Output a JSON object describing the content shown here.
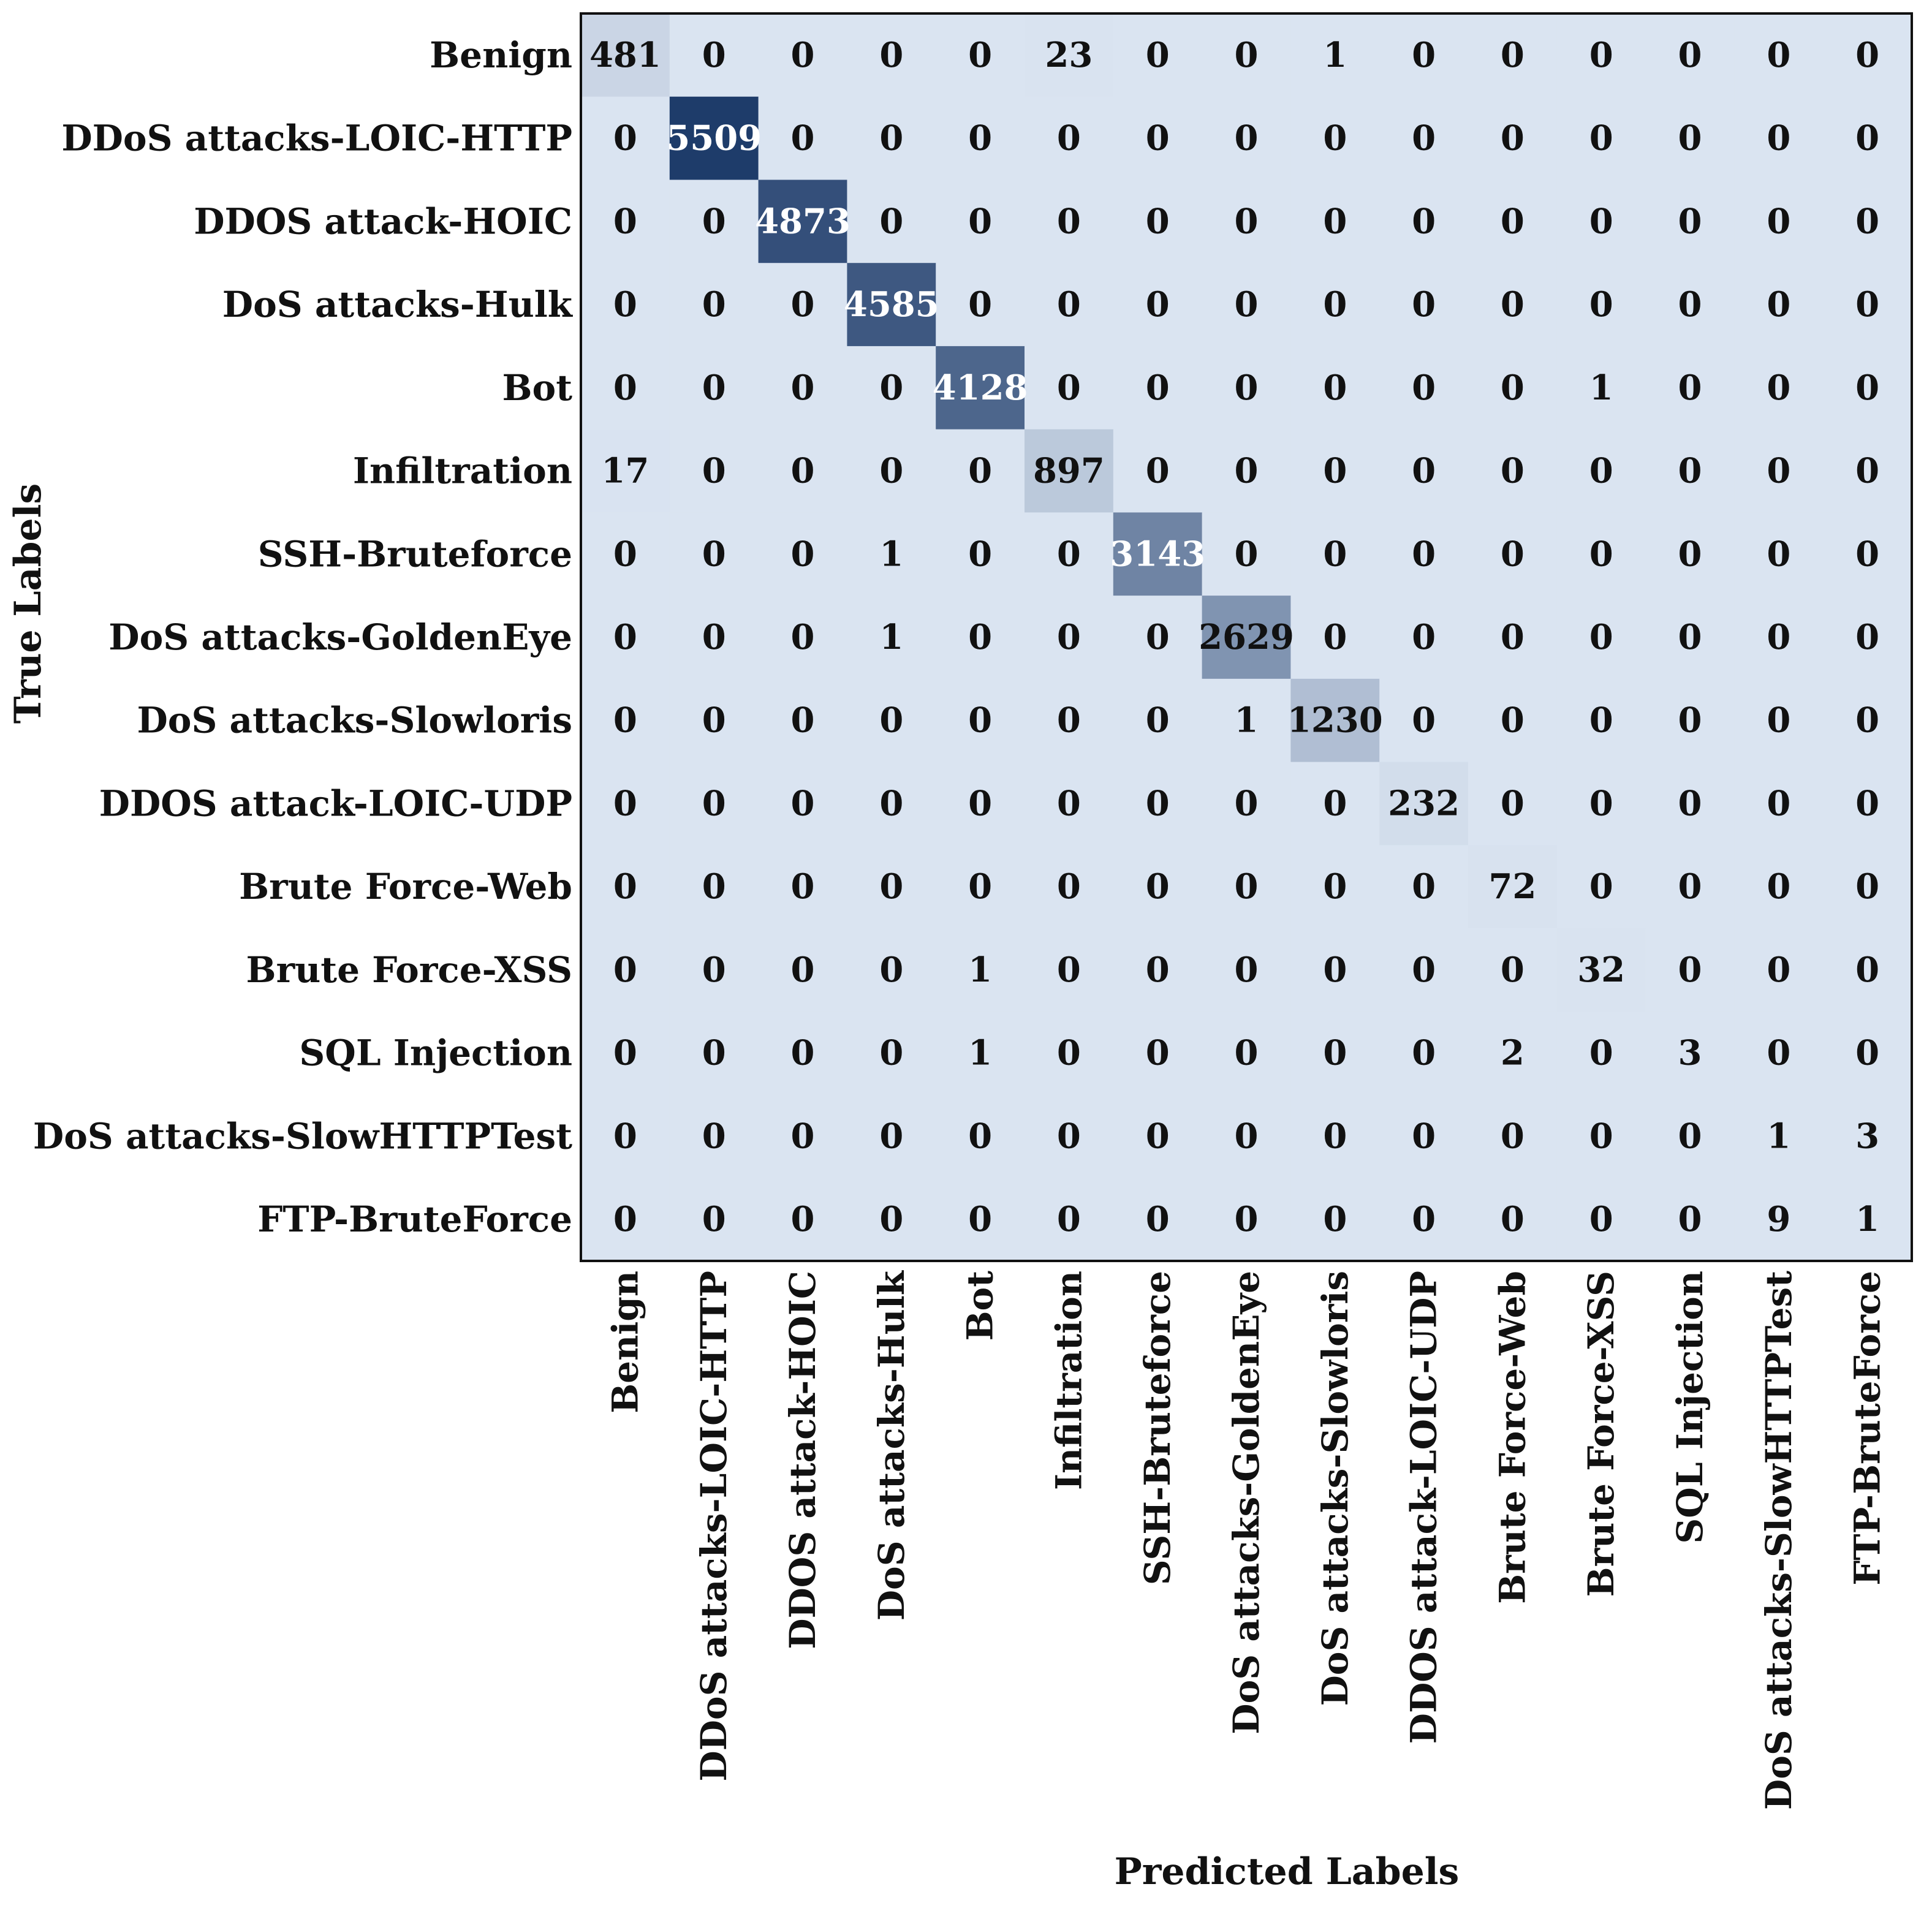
{
  "chart_data": {
    "type": "heatmap",
    "title": "",
    "xlabel": "Predicted Labels",
    "ylabel": "True Labels",
    "row_labels": [
      "Benign",
      "DDoS attacks-LOIC-HTTP",
      "DDOS attack-HOIC",
      "DoS attacks-Hulk",
      "Bot",
      "Infiltration",
      "SSH-Bruteforce",
      "DoS attacks-GoldenEye",
      "DoS attacks-Slowloris",
      "DDOS attack-LOIC-UDP",
      "Brute Force-Web",
      "Brute Force-XSS",
      "SQL Injection",
      "DoS attacks-SlowHTTPTest",
      "FTP-BruteForce"
    ],
    "col_labels": [
      "Benign",
      "DDoS attacks-LOIC-HTTP",
      "DDOS attack-HOIC",
      "DoS attacks-Hulk",
      "Bot",
      "Infiltration",
      "SSH-Bruteforce",
      "DoS attacks-GoldenEye",
      "DoS attacks-Slowloris",
      "DDOS attack-LOIC-UDP",
      "Brute Force-Web",
      "Brute Force-XSS",
      "SQL Injection",
      "DoS attacks-SlowHTTPTest",
      "FTP-BruteForce"
    ],
    "values": [
      [
        481,
        0,
        0,
        0,
        0,
        23,
        0,
        0,
        1,
        0,
        0,
        0,
        0,
        0,
        0
      ],
      [
        0,
        5509,
        0,
        0,
        0,
        0,
        0,
        0,
        0,
        0,
        0,
        0,
        0,
        0,
        0
      ],
      [
        0,
        0,
        4873,
        0,
        0,
        0,
        0,
        0,
        0,
        0,
        0,
        0,
        0,
        0,
        0
      ],
      [
        0,
        0,
        0,
        4585,
        0,
        0,
        0,
        0,
        0,
        0,
        0,
        0,
        0,
        0,
        0
      ],
      [
        0,
        0,
        0,
        0,
        4128,
        0,
        0,
        0,
        0,
        0,
        0,
        1,
        0,
        0,
        0
      ],
      [
        17,
        0,
        0,
        0,
        0,
        897,
        0,
        0,
        0,
        0,
        0,
        0,
        0,
        0,
        0
      ],
      [
        0,
        0,
        0,
        1,
        0,
        0,
        3143,
        0,
        0,
        0,
        0,
        0,
        0,
        0,
        0
      ],
      [
        0,
        0,
        0,
        1,
        0,
        0,
        0,
        2629,
        0,
        0,
        0,
        0,
        0,
        0,
        0
      ],
      [
        0,
        0,
        0,
        0,
        0,
        0,
        0,
        1,
        1230,
        0,
        0,
        0,
        0,
        0,
        0
      ],
      [
        0,
        0,
        0,
        0,
        0,
        0,
        0,
        0,
        0,
        232,
        0,
        0,
        0,
        0,
        0
      ],
      [
        0,
        0,
        0,
        0,
        0,
        0,
        0,
        0,
        0,
        0,
        72,
        0,
        0,
        0,
        0
      ],
      [
        0,
        0,
        0,
        0,
        1,
        0,
        0,
        0,
        0,
        0,
        0,
        32,
        0,
        0,
        0
      ],
      [
        0,
        0,
        0,
        0,
        1,
        0,
        0,
        0,
        0,
        0,
        2,
        0,
        3,
        0,
        0
      ],
      [
        0,
        0,
        0,
        0,
        0,
        0,
        0,
        0,
        0,
        0,
        0,
        0,
        0,
        1,
        3
      ],
      [
        0,
        0,
        0,
        0,
        0,
        0,
        0,
        0,
        0,
        0,
        0,
        0,
        0,
        9,
        1
      ]
    ],
    "colormap": "Blues",
    "colorbar": false
  },
  "colors": {
    "low": "#dae4f1",
    "high": "#1e3c6a",
    "text_dark": "#111111",
    "text_light": "#ffffff",
    "frame": "#111111"
  }
}
